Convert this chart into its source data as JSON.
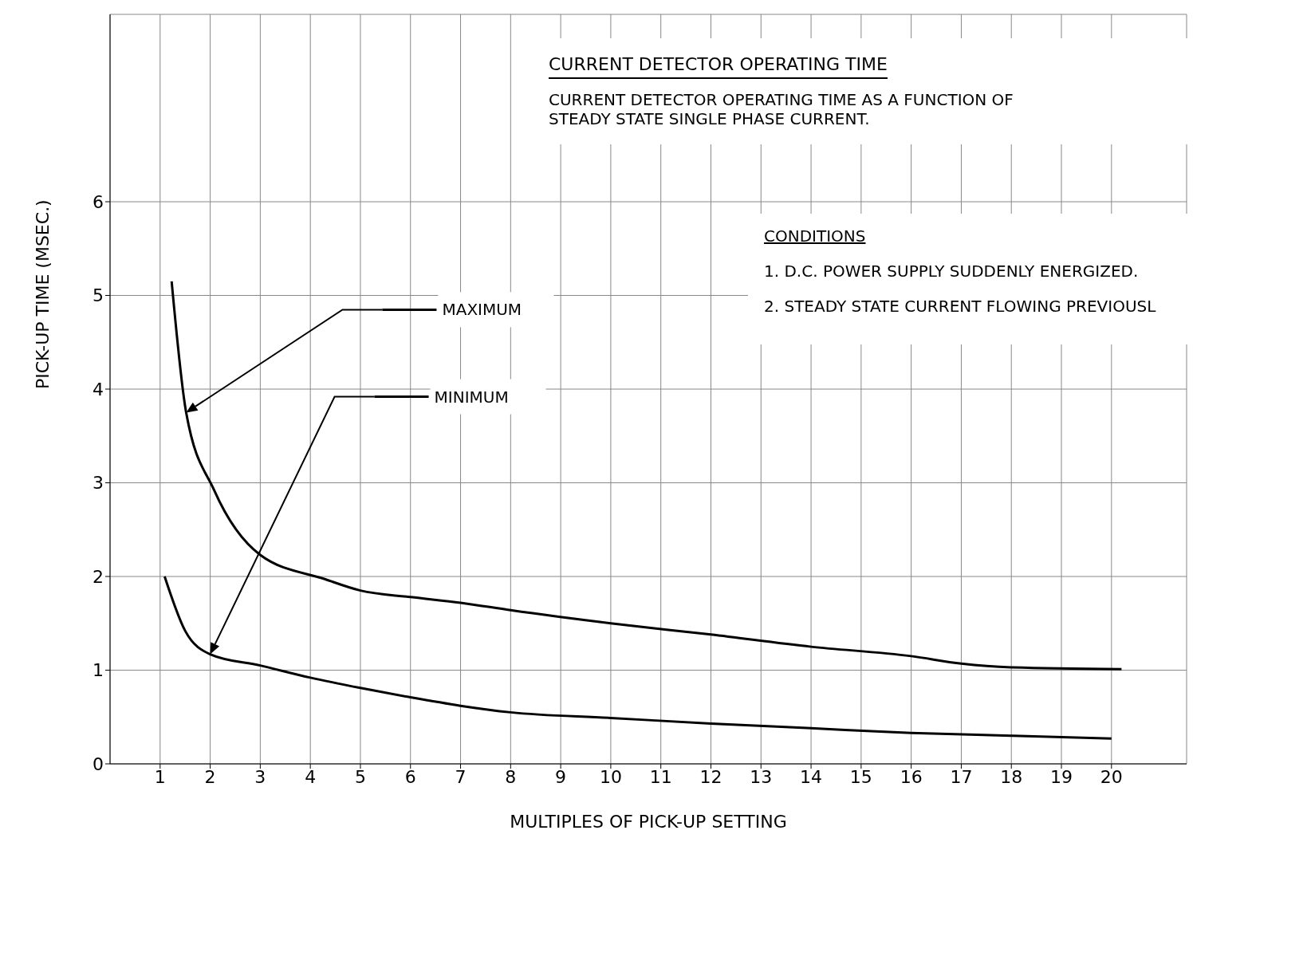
{
  "chart_data": {
    "type": "line",
    "title": "CURRENT DETECTOR OPERATING TIME",
    "subtitle": "CURRENT DETECTOR OPERATING TIME AS A FUNCTION OF STEADY STATE SINGLE PHASE CURRENT.",
    "xlabel": "MULTIPLES OF PICK-UP SETTING",
    "ylabel": "PICK-UP TIME (MSEC.)",
    "annotations": [
      "CONDITIONS",
      "1. D.C. POWER SUPPLY SUDDENLY ENERGIZED.",
      "2. STEADY STATE CURRENT FLOWING PREVIOUSL"
    ],
    "series": [
      {
        "name": "MAXIMUM",
        "color": "#000000",
        "x": [
          1.23,
          1.52,
          2.08,
          3,
          4.3,
          5,
          6,
          7,
          8,
          10,
          12,
          14,
          16,
          17,
          18,
          20.2
        ],
        "values": [
          5.15,
          3.75,
          2.92,
          2.23,
          1.97,
          1.85,
          1.78,
          1.72,
          1.64,
          1.5,
          1.38,
          1.25,
          1.15,
          1.07,
          1.03,
          1.01
        ]
      },
      {
        "name": "MINIMUM",
        "color": "#000000",
        "x": [
          1.09,
          1.5,
          2,
          3,
          4,
          5,
          6,
          7,
          8,
          10,
          12,
          14,
          16,
          18,
          20
        ],
        "values": [
          2.0,
          1.42,
          1.17,
          1.05,
          0.92,
          0.81,
          0.71,
          0.62,
          0.55,
          0.49,
          0.43,
          0.38,
          0.33,
          0.3,
          0.27
        ]
      }
    ],
    "xlim": [
      0,
      21.5
    ],
    "xticks": [
      1,
      2,
      3,
      4,
      5,
      6,
      7,
      8,
      9,
      10,
      11,
      12,
      13,
      14,
      15,
      16,
      17,
      18,
      19,
      20
    ],
    "ylim": [
      0,
      8
    ],
    "yticks": [
      0,
      1,
      2,
      3,
      4,
      5,
      6
    ],
    "grid": true,
    "legend": "top left",
    "marker": "none",
    "line_style": "solid"
  }
}
